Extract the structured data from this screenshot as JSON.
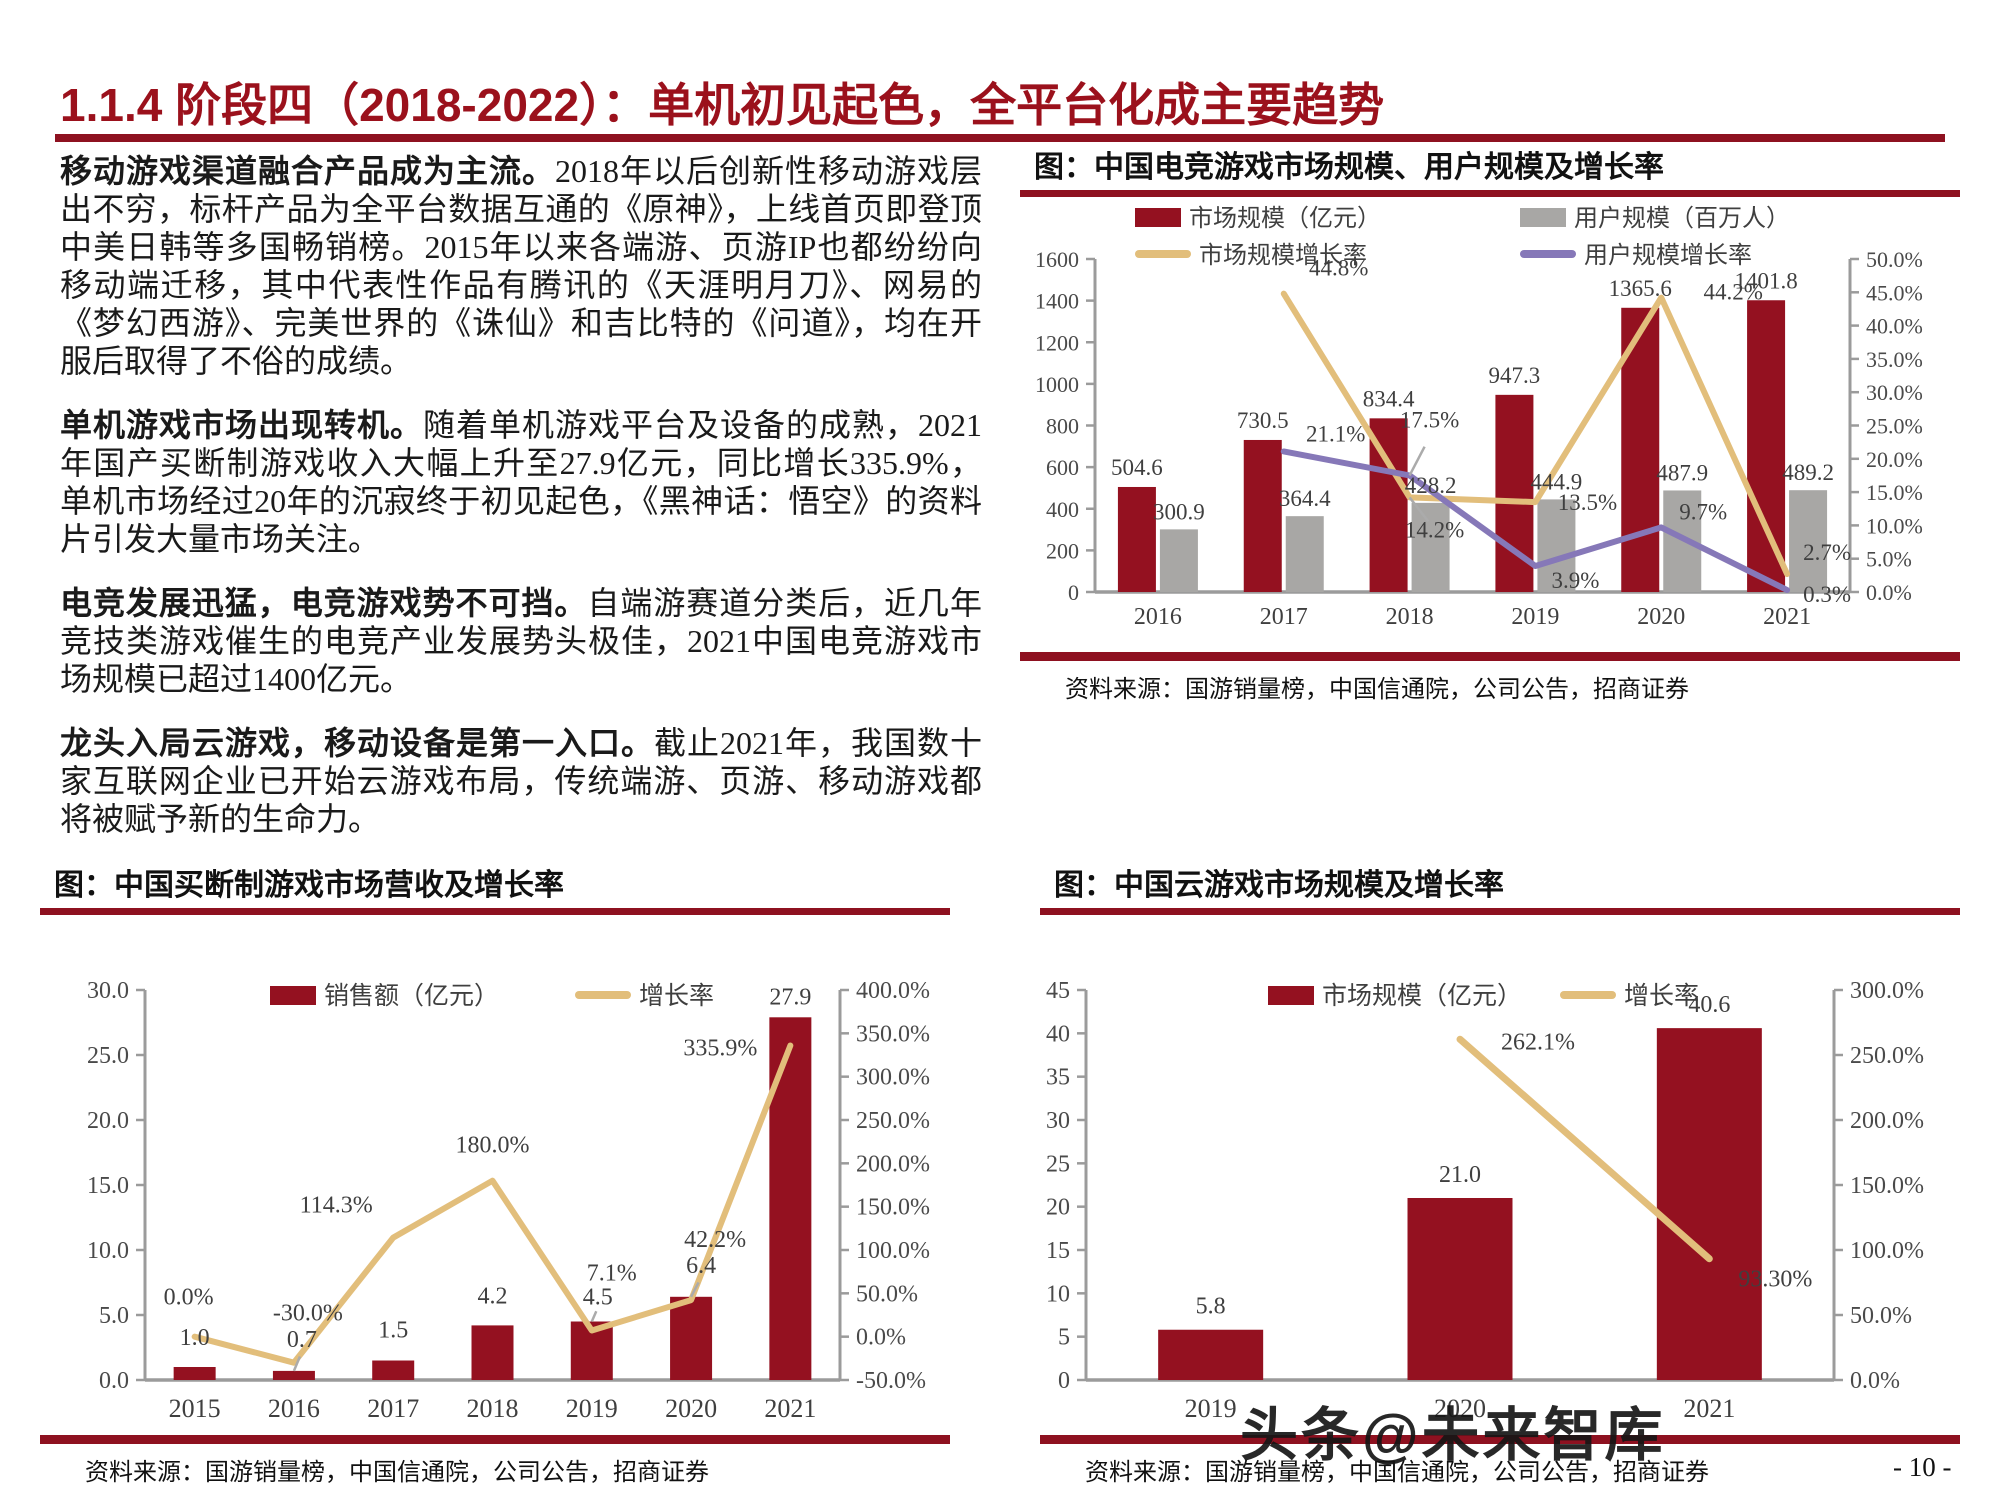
{
  "page": {
    "title": "1.1.4 阶段四（2018-2022）：单机初见起色，全平台化成主要趋势",
    "page_number": "- 10 -",
    "watermark": "头条@未来智库"
  },
  "colors": {
    "title_red": "#9B111C",
    "rule_red": "#8E1120",
    "bar_red": "#941120",
    "bar_gray": "#A8A7A5",
    "line_gold": "#E2BE7B",
    "line_purple": "#8678B8",
    "axis_gray": "#9B9B9B",
    "label_dark": "#3F3F3F",
    "leader_gray": "#ABABAB"
  },
  "paragraphs": [
    {
      "lead": "移动游戏渠道融合产品成为主流。",
      "body": "2018年以后创新性移动游戏层出不穷，标杆产品为全平台数据互通的《原神》，上线首页即登顶中美日韩等多国畅销榜。2015年以来各端游、页游IP也都纷纷向移动端迁移，其中代表性作品有腾讯的《天涯明月刀》、网易的《梦幻西游》、完美世界的《诛仙》和吉比特的《问道》，均在开服后取得了不俗的成绩。"
    },
    {
      "lead": "单机游戏市场出现转机。",
      "body": "随着单机游戏平台及设备的成熟，2021年国产买断制游戏收入大幅上升至27.9亿元，同比增长335.9%，单机市场经过20年的沉寂终于初见起色，《黑神话：悟空》的资料片引发大量市场关注。"
    },
    {
      "lead": "电竞发展迅猛，电竞游戏势不可挡。",
      "body": "自端游赛道分类后，近几年竞技类游戏催生的电竞产业发展势头极佳，2021中国电竞游戏市场规模已超过1400亿元。"
    },
    {
      "lead": "龙头入局云游戏，移动设备是第一入口。",
      "body": "截止2021年，我国数十家互联网企业已开始云游戏布局，传统端游、页游、移动游戏都将被赋予新的生命力。"
    }
  ],
  "chart_data": [
    {
      "id": "esports",
      "type": "bar+line",
      "title": "图：中国电竞游戏市场规模、用户规模及增长率",
      "source": "资料来源：国游销量榜，中国信通院，公司公告，招商证券",
      "categories": [
        "2016",
        "2017",
        "2018",
        "2019",
        "2020",
        "2021"
      ],
      "left_axis": {
        "min": 0,
        "max": 1600,
        "step": 200,
        "decimals": 0,
        "suffix": ""
      },
      "right_axis": {
        "min": 0,
        "max": 50,
        "step": 5,
        "decimals": 1,
        "suffix": "%"
      },
      "legend_position": "top",
      "grid": false,
      "series": [
        {
          "name": "市场规模（亿元）",
          "type": "bar",
          "axis": "left",
          "color_key": "bar_red",
          "values": [
            504.6,
            730.5,
            834.4,
            947.3,
            1365.6,
            1401.8
          ],
          "labels": [
            "504.6",
            "730.5",
            "834.4",
            "947.3",
            "1365.6",
            "1401.8"
          ]
        },
        {
          "name": "用户规模（百万人）",
          "type": "bar",
          "axis": "left",
          "color_key": "bar_gray",
          "values": [
            300.9,
            364.4,
            428.2,
            444.9,
            487.9,
            489.2
          ],
          "labels": [
            "300.9",
            "364.4",
            "428.2",
            "444.9",
            "487.9",
            "489.2"
          ]
        },
        {
          "name": "市场规模增长率",
          "type": "line",
          "axis": "right",
          "color_key": "line_gold",
          "values": [
            null,
            44.8,
            14.2,
            13.5,
            44.2,
            2.7
          ],
          "labels": [
            null,
            "44.8%",
            "14.2%",
            "13.5%",
            "44.2%",
            "2.7%"
          ]
        },
        {
          "name": "用户规模增长率",
          "type": "line",
          "axis": "right",
          "color_key": "line_purple",
          "values": [
            null,
            21.1,
            17.5,
            3.9,
            9.7,
            0.3
          ],
          "labels": [
            null,
            "21.1%",
            "17.5%",
            "3.9%",
            "9.7%",
            "0.3%"
          ]
        }
      ]
    },
    {
      "id": "buyout",
      "type": "bar+line",
      "title": "图：中国买断制游戏市场营收及增长率",
      "source": "资料来源：国游销量榜，中国信通院，公司公告，招商证券",
      "categories": [
        "2015",
        "2016",
        "2017",
        "2018",
        "2019",
        "2020",
        "2021"
      ],
      "left_axis": {
        "min": 0,
        "max": 30,
        "step": 5,
        "decimals": 1,
        "suffix": ""
      },
      "right_axis": {
        "min": -50,
        "max": 400,
        "step": 50,
        "decimals": 1,
        "suffix": "%"
      },
      "legend_position": "top",
      "grid": false,
      "series": [
        {
          "name": "销售额（亿元）",
          "type": "bar",
          "axis": "left",
          "color_key": "bar_red",
          "values": [
            1.0,
            0.7,
            1.5,
            4.2,
            4.5,
            6.4,
            27.9
          ],
          "labels": [
            "1.0",
            "0.7",
            "1.5",
            "4.2",
            "4.5",
            "6.4",
            "27.9"
          ]
        },
        {
          "name": "增长率",
          "type": "line",
          "axis": "right",
          "color_key": "line_gold",
          "values": [
            0.0,
            -30.0,
            114.3,
            180.0,
            7.1,
            42.2,
            335.9
          ],
          "labels": [
            "0.0%",
            "-30.0%",
            "114.3%",
            "180.0%",
            "7.1%",
            "42.2%",
            "335.9%"
          ]
        }
      ]
    },
    {
      "id": "cloud",
      "type": "bar+line",
      "title": "图：中国云游戏市场规模及增长率",
      "source": "资料来源：国游销量榜，中国信通院，公司公告，招商证券",
      "categories": [
        "2019",
        "2020",
        "2021"
      ],
      "left_axis": {
        "min": 0,
        "max": 45,
        "step": 5,
        "decimals": 0,
        "suffix": ""
      },
      "right_axis": {
        "min": 0,
        "max": 300,
        "step": 50,
        "decimals": 1,
        "suffix": "%"
      },
      "legend_position": "top",
      "grid": false,
      "series": [
        {
          "name": "市场规模（亿元）",
          "type": "bar",
          "axis": "left",
          "color_key": "bar_red",
          "values": [
            5.8,
            21.0,
            40.6
          ],
          "labels": [
            "5.8",
            "21.0",
            "40.6"
          ]
        },
        {
          "name": "增长率",
          "type": "line",
          "axis": "right",
          "color_key": "line_gold",
          "values": [
            null,
            262.1,
            93.3
          ],
          "labels": [
            null,
            "262.1%",
            "93.30%"
          ]
        }
      ]
    }
  ]
}
